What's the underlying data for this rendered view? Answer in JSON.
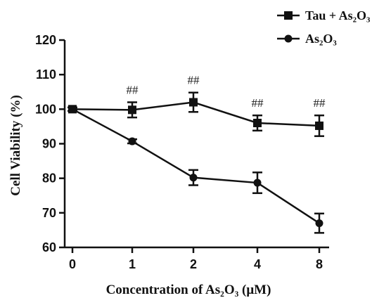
{
  "chart_data": {
    "type": "line",
    "categories": [
      "0",
      "1",
      "2",
      "4",
      "8"
    ],
    "xlabel": "Concentration of As₂O₃ (μM)",
    "ylabel": "Cell Viability (%)",
    "ylim": [
      60,
      120
    ],
    "yticks": [
      "60",
      "70",
      "80",
      "90",
      "100",
      "110",
      "120"
    ],
    "grid": false,
    "legend_position": "top-right",
    "series": [
      {
        "name": "Tau + As₂O₃",
        "marker": "square",
        "color": "#111111",
        "values": [
          100,
          99.8,
          102,
          96,
          95.2
        ],
        "errors": [
          0.5,
          2.2,
          2.8,
          2.2,
          3.0
        ]
      },
      {
        "name": "As₂O₃",
        "marker": "circle",
        "color": "#111111",
        "values": [
          100,
          90.7,
          80.2,
          78.7,
          67
        ],
        "errors": [
          0.5,
          0.6,
          2.2,
          3.0,
          2.8
        ]
      }
    ],
    "annotations": [
      {
        "category": "1",
        "text": "##"
      },
      {
        "category": "2",
        "text": "##"
      },
      {
        "category": "4",
        "text": "##"
      },
      {
        "category": "8",
        "text": "##"
      }
    ]
  }
}
